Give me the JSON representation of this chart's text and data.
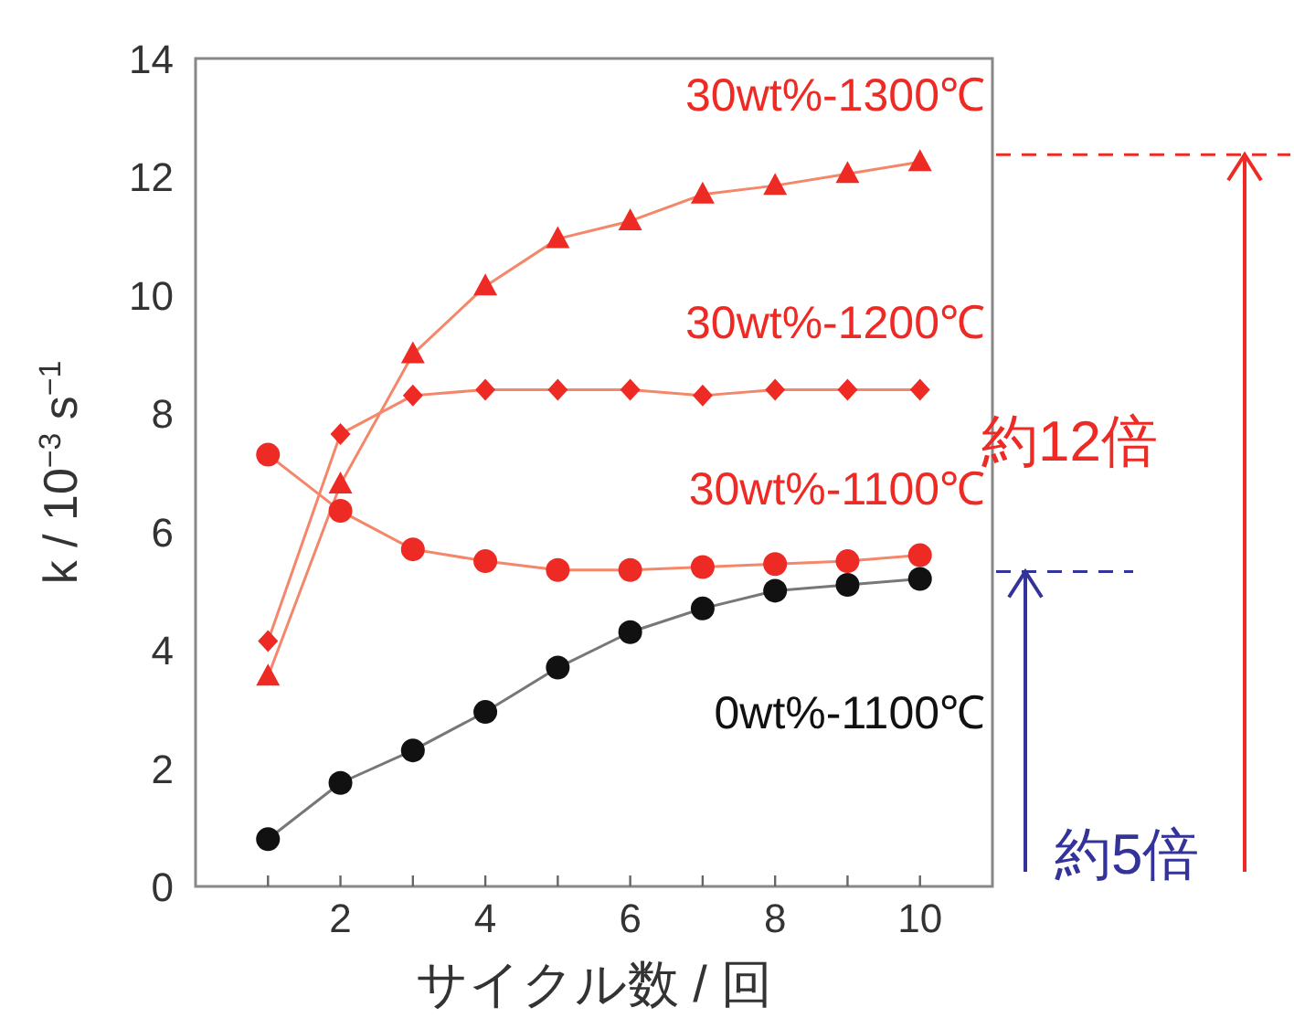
{
  "chart_data": {
    "type": "line",
    "xlabel": "サイクル数 / 回",
    "ylabel": "k / 10$^{−3}$ s$^{−1}$",
    "x": [
      1,
      2,
      3,
      4,
      5,
      6,
      7,
      8,
      9,
      10
    ],
    "xlim": [
      0,
      11
    ],
    "xticks": [
      {
        "value": 1,
        "label": null
      },
      2,
      {
        "value": 3,
        "label": null
      },
      4,
      {
        "value": 5,
        "label": null
      },
      6,
      {
        "value": 7,
        "label": null
      },
      8,
      {
        "value": 9,
        "label": null
      },
      10
    ],
    "ylim": [
      0,
      14
    ],
    "yticks": [
      0,
      2,
      4,
      6,
      8,
      10,
      12,
      14
    ],
    "grid": false,
    "series": [
      {
        "name": "30wt%-1300℃",
        "color": "#ee2a24",
        "marker": "triangle",
        "values": [
          3.55,
          6.8,
          9.0,
          10.15,
          10.95,
          11.25,
          11.7,
          11.85,
          12.05,
          12.25
        ]
      },
      {
        "name": "30wt%-1200℃",
        "color": "#ee2a24",
        "marker": "diamond",
        "values": [
          4.15,
          7.65,
          8.3,
          8.4,
          8.4,
          8.4,
          8.3,
          8.4,
          8.4,
          8.4
        ]
      },
      {
        "name": "30wt%-1100℃",
        "color": "#ee2a24",
        "marker": "circle",
        "values": [
          7.3,
          6.35,
          5.7,
          5.5,
          5.35,
          5.35,
          5.4,
          5.45,
          5.5,
          5.6
        ]
      },
      {
        "name": "0wt%-1100℃",
        "color": "#111111",
        "marker": "circle",
        "values": [
          0.8,
          1.75,
          2.3,
          2.95,
          3.7,
          4.3,
          4.7,
          5.0,
          5.1,
          5.2
        ]
      }
    ],
    "annotations": [
      "約12倍",
      "約5倍"
    ]
  }
}
